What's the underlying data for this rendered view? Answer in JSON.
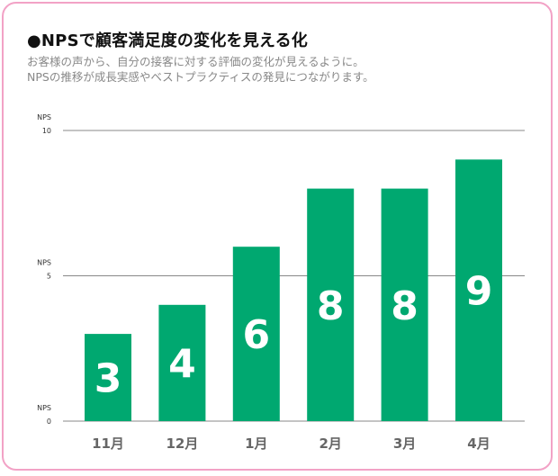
{
  "header": {
    "title": "●NPSで顧客満足度の変化を見える化",
    "subtitle_lines": [
      "お客様の声から、自分の接客に対する評価の変化が見えるように。",
      "NPSの推移が成長実感やベストプラクティスの発見につながります。"
    ]
  },
  "colors": {
    "bar": "#00a870",
    "border": "#f2a2c6",
    "grid": "#888888"
  },
  "chart_data": {
    "type": "bar",
    "categories": [
      "11月",
      "12月",
      "1月",
      "2月",
      "3月",
      "4月"
    ],
    "values": [
      3,
      4,
      6,
      8,
      8,
      9
    ],
    "ylim": [
      0,
      10
    ],
    "yticks": [
      {
        "name": "NPS",
        "value": 10
      },
      {
        "name": "NPS",
        "value": 5
      },
      {
        "name": "NPS",
        "value": 0
      }
    ],
    "grid": true,
    "data_labels": [
      "3",
      "4",
      "6",
      "8",
      "8",
      "9"
    ]
  }
}
